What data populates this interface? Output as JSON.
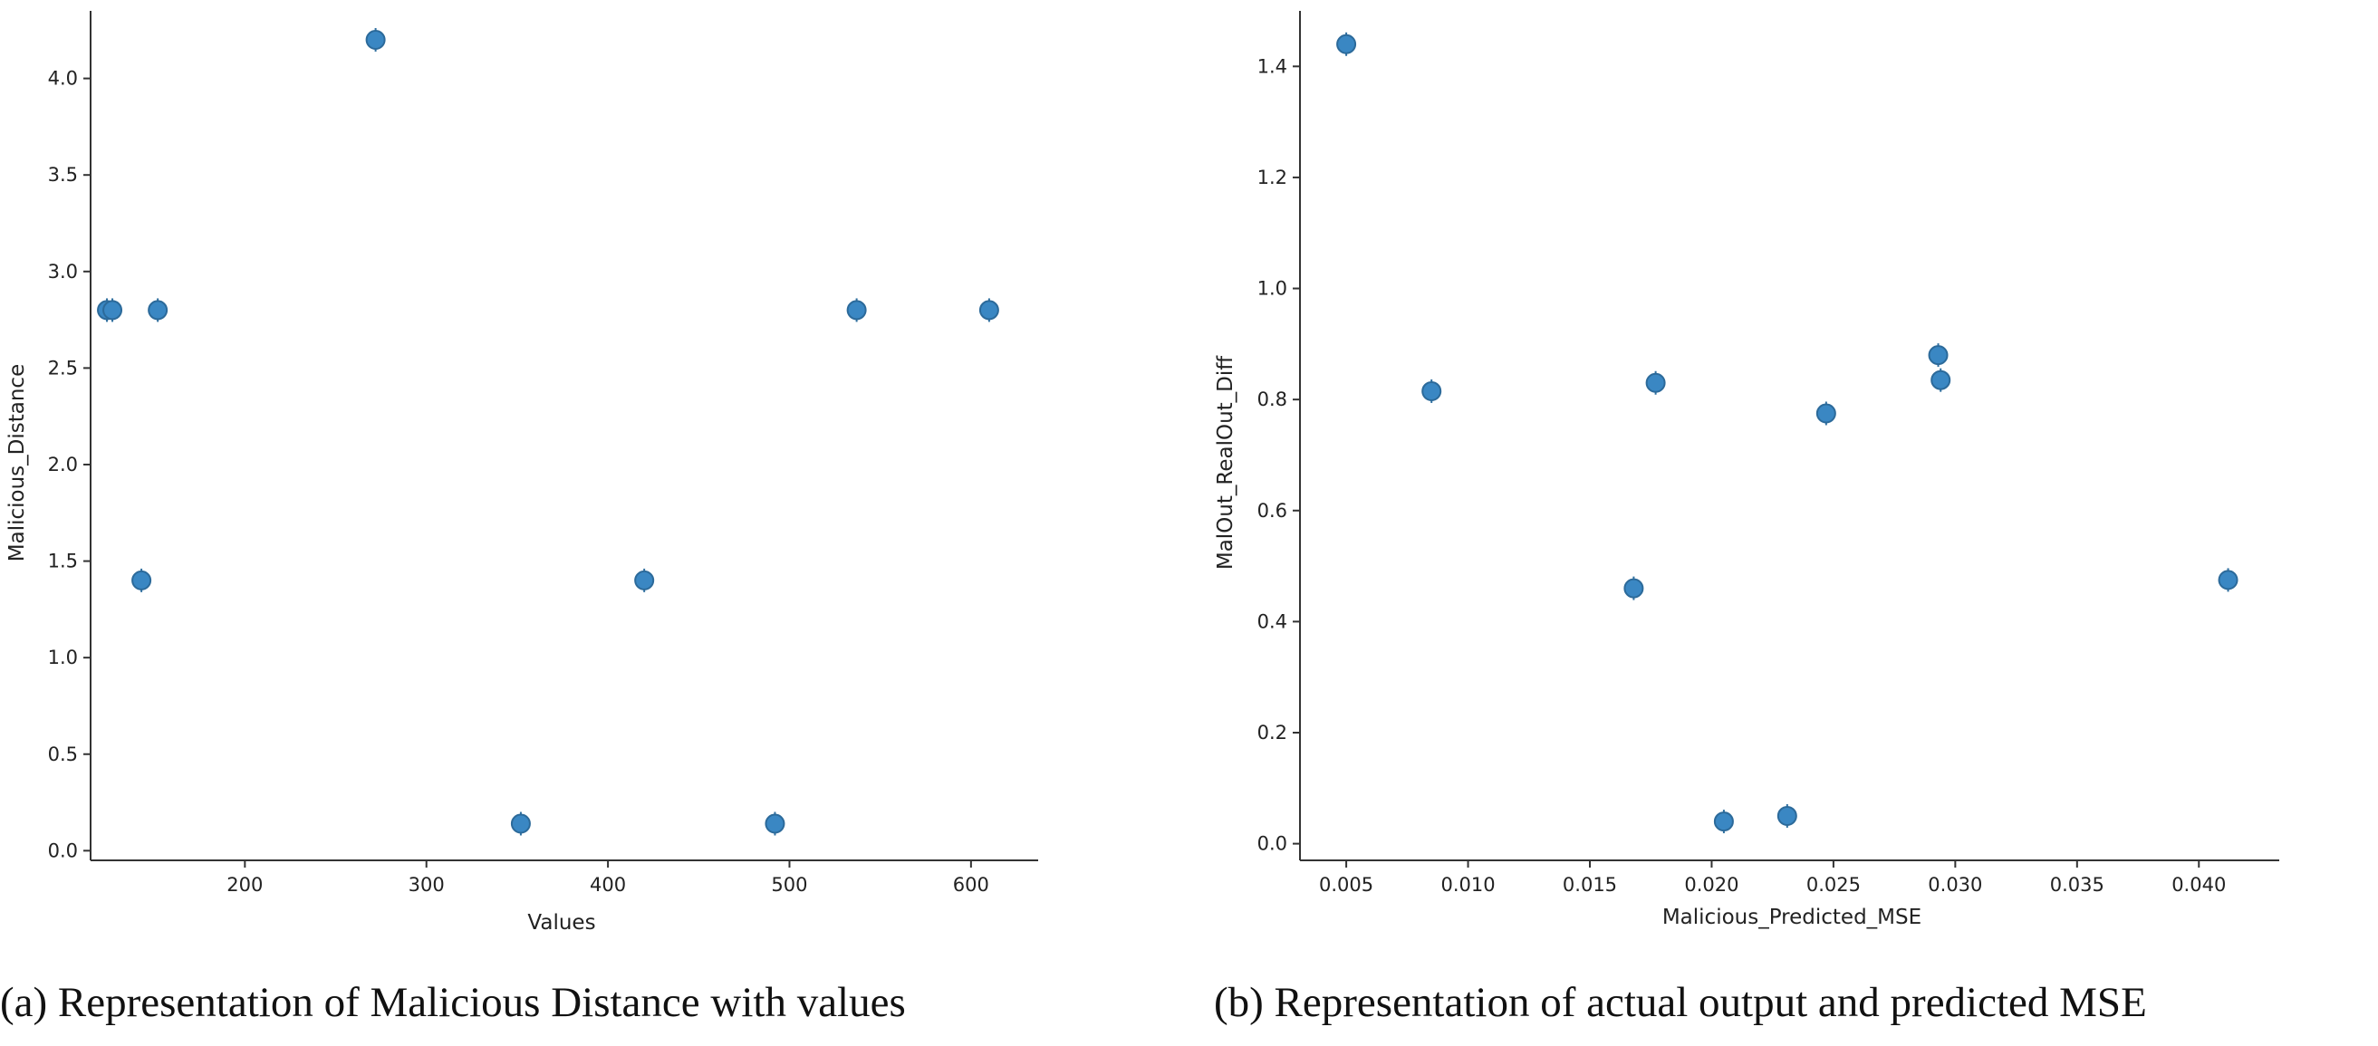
{
  "chart_data": [
    {
      "type": "scatter",
      "caption": "(a) Representation of Malicious Distance with values",
      "xlabel": "Values",
      "ylabel": "Malicious_Distance",
      "xlim": [
        115,
        637
      ],
      "ylim": [
        -0.05,
        4.35
      ],
      "xticks": [
        200,
        300,
        400,
        500,
        600
      ],
      "xtick_labels": [
        "200",
        "300",
        "400",
        "500",
        "600"
      ],
      "yticks": [
        0.0,
        0.5,
        1.0,
        1.5,
        2.0,
        2.5,
        3.0,
        3.5,
        4.0
      ],
      "ytick_labels": [
        "0.0",
        "0.5",
        "1.0",
        "1.5",
        "2.0",
        "2.5",
        "3.0",
        "3.5",
        "4.0"
      ],
      "grid": false,
      "color": "#3a87c3",
      "series": [
        {
          "name": "Malicious_Distance",
          "x": [
            124,
            127,
            143,
            152,
            272,
            352,
            420,
            492,
            537,
            610
          ],
          "y": [
            2.8,
            2.8,
            1.4,
            2.8,
            4.2,
            0.14,
            1.4,
            0.14,
            2.8,
            2.8
          ]
        }
      ]
    },
    {
      "type": "scatter",
      "caption": "(b) Representation of actual output and predicted MSE",
      "xlabel": "Malicious_Predicted_MSE",
      "ylabel": "MalOut_RealOut_Diff",
      "xlim": [
        0.0031,
        0.0433
      ],
      "ylim": [
        -0.03,
        1.5
      ],
      "xticks": [
        0.005,
        0.01,
        0.015,
        0.02,
        0.025,
        0.03,
        0.035,
        0.04
      ],
      "xtick_labels": [
        "0.005",
        "0.010",
        "0.015",
        "0.020",
        "0.025",
        "0.030",
        "0.035",
        "0.040"
      ],
      "yticks": [
        0.0,
        0.2,
        0.4,
        0.6,
        0.8,
        1.0,
        1.2,
        1.4
      ],
      "ytick_labels": [
        "0.0",
        "0.2",
        "0.4",
        "0.6",
        "0.8",
        "1.0",
        "1.2",
        "1.4"
      ],
      "grid": false,
      "color": "#3a87c3",
      "series": [
        {
          "name": "MalOut_RealOut_Diff",
          "x": [
            0.005,
            0.0085,
            0.0168,
            0.0177,
            0.0205,
            0.0231,
            0.0247,
            0.0293,
            0.0294,
            0.0412
          ],
          "y": [
            1.44,
            0.815,
            0.46,
            0.83,
            0.04,
            0.05,
            0.775,
            0.88,
            0.835,
            0.475
          ]
        }
      ]
    }
  ]
}
